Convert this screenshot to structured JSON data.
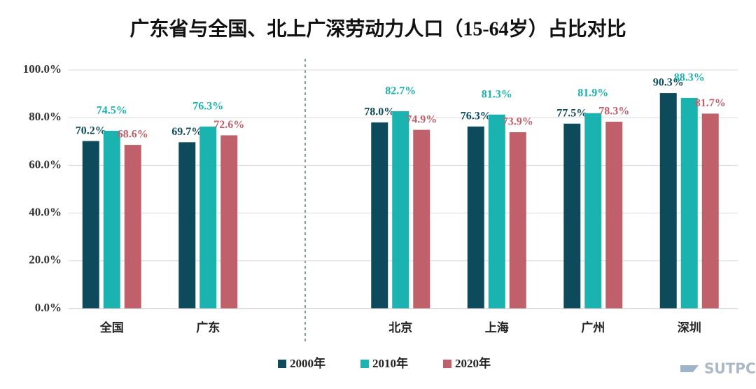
{
  "chart_data": {
    "type": "bar",
    "title": "广东省与全国、北上广深劳动力人口（15-64岁）占比对比",
    "categories": [
      "全国",
      "广东",
      null,
      "北京",
      "上海",
      "广州",
      "深圳"
    ],
    "series": [
      {
        "name": "2000年",
        "color": "#0d4a5c",
        "values": [
          70.2,
          69.7,
          null,
          78.0,
          76.3,
          77.5,
          90.3
        ],
        "value_labels": [
          "70.2%",
          "69.7%",
          null,
          "78.0%",
          "76.3%",
          "77.5%",
          "90.3%"
        ]
      },
      {
        "name": "2010年",
        "color": "#1ab3b0",
        "values": [
          74.5,
          76.3,
          null,
          82.7,
          81.3,
          81.9,
          88.3
        ],
        "value_labels": [
          "74.5%",
          "76.3%",
          null,
          "82.7%",
          "81.3%",
          "81.9%",
          "88.3%"
        ]
      },
      {
        "name": "2020年",
        "color": "#c0606a",
        "values": [
          68.6,
          72.6,
          null,
          74.9,
          73.9,
          78.3,
          81.7
        ],
        "value_labels": [
          "68.6%",
          "72.6%",
          null,
          "74.9%",
          "73.9%",
          "78.3%",
          "81.7%"
        ]
      }
    ],
    "ylim": [
      0,
      100
    ],
    "yticks": [
      {
        "value": 0,
        "label": "0.0%"
      },
      {
        "value": 20,
        "label": "20.0%"
      },
      {
        "value": 40,
        "label": "40.0%"
      },
      {
        "value": 60,
        "label": "60.0%"
      },
      {
        "value": 80,
        "label": "80.0%"
      },
      {
        "value": 100,
        "label": "100.0%"
      }
    ],
    "grid": true,
    "legend": "bottom",
    "watermark": "SUTPC"
  }
}
